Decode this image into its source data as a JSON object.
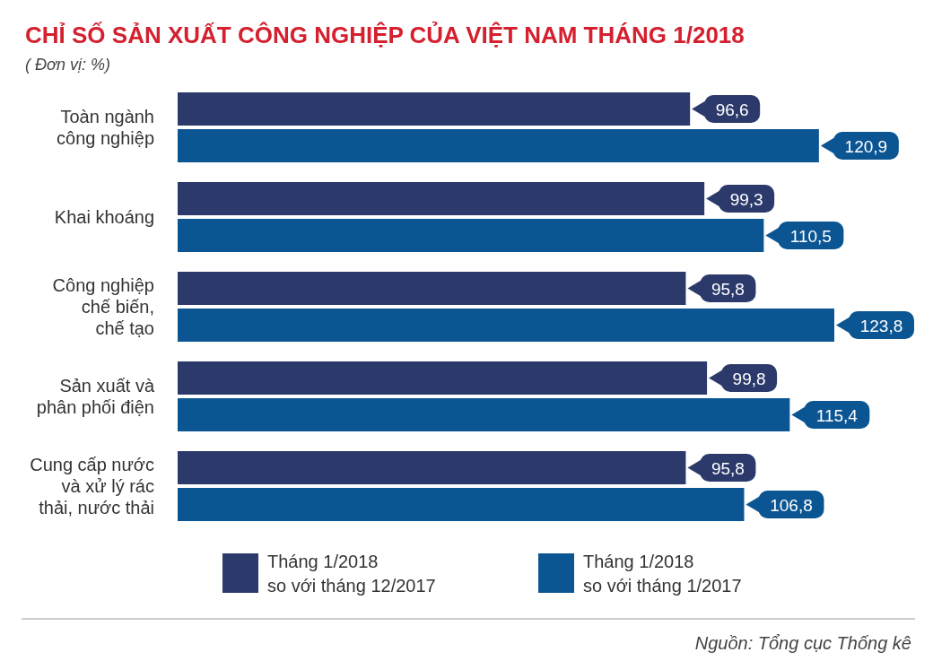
{
  "chart_data": {
    "type": "bar",
    "orientation": "horizontal",
    "title": "CHỈ SỐ SẢN XUẤT CÔNG NGHIỆP CỦA VIỆT NAM THÁNG 1/2018",
    "subtitle": "( Đơn vị: %)",
    "categories": [
      "Toàn ngành\ncông nghiệp",
      "Khai khoáng",
      "Công nghiệp\nchế biến,\nchế tạo",
      "Sản xuất và\nphân phối điện",
      "Cung cấp nước\nvà xử lý rác\nthải, nước thải"
    ],
    "series": [
      {
        "name": "Tháng 1/2018\nso với tháng 12/2017",
        "color": "#2b3a6b",
        "values": [
          96.6,
          99.3,
          95.8,
          99.8,
          95.8
        ],
        "value_labels": [
          "96,6",
          "99,3",
          "95,8",
          "99,8",
          "95,8"
        ]
      },
      {
        "name": "Tháng 1/2018\nso với tháng 1/2017",
        "color": "#0b5593",
        "values": [
          120.9,
          110.5,
          123.8,
          115.4,
          106.8
        ],
        "value_labels": [
          "120,9",
          "110,5",
          "123,8",
          "115,4",
          "106,8"
        ]
      }
    ],
    "legend": "bottom",
    "annotations": [
      "Nguồn: Tổng cục Thống kê"
    ]
  }
}
